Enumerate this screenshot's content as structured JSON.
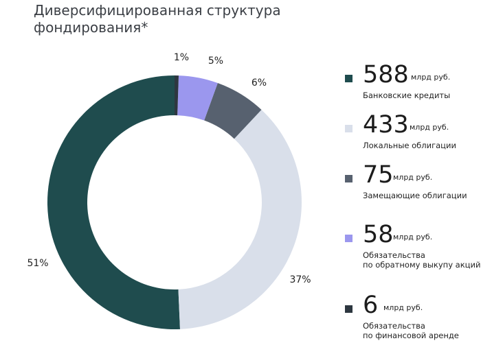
{
  "title": {
    "line1": "Диверсифицированная структура",
    "line2": "фондирования*"
  },
  "chart_data": {
    "type": "pie",
    "donut": true,
    "unit": "млрд руб.",
    "slices": [
      {
        "value": 588,
        "percent_label": "51%",
        "label_lines": [
          "Банковские кредиты"
        ],
        "color": "#1f4c4e"
      },
      {
        "value": 433,
        "percent_label": "37%",
        "label_lines": [
          "Локальные облигации"
        ],
        "color": "#d9dfea"
      },
      {
        "value": 75,
        "percent_label": "6%",
        "label_lines": [
          "Замещающие облигации"
        ],
        "color": "#57616f"
      },
      {
        "value": 58,
        "percent_label": "5%",
        "label_lines": [
          "Обязательства",
          "по обратному выкупу акций"
        ],
        "color": "#9b97ee"
      },
      {
        "value": 6,
        "percent_label": "1%",
        "label_lines": [
          "Обязательства",
          "по финансовой аренде"
        ],
        "color": "#2d3740"
      }
    ],
    "draw_order": [
      0,
      1,
      2,
      3,
      4
    ],
    "legend_position": "right"
  }
}
